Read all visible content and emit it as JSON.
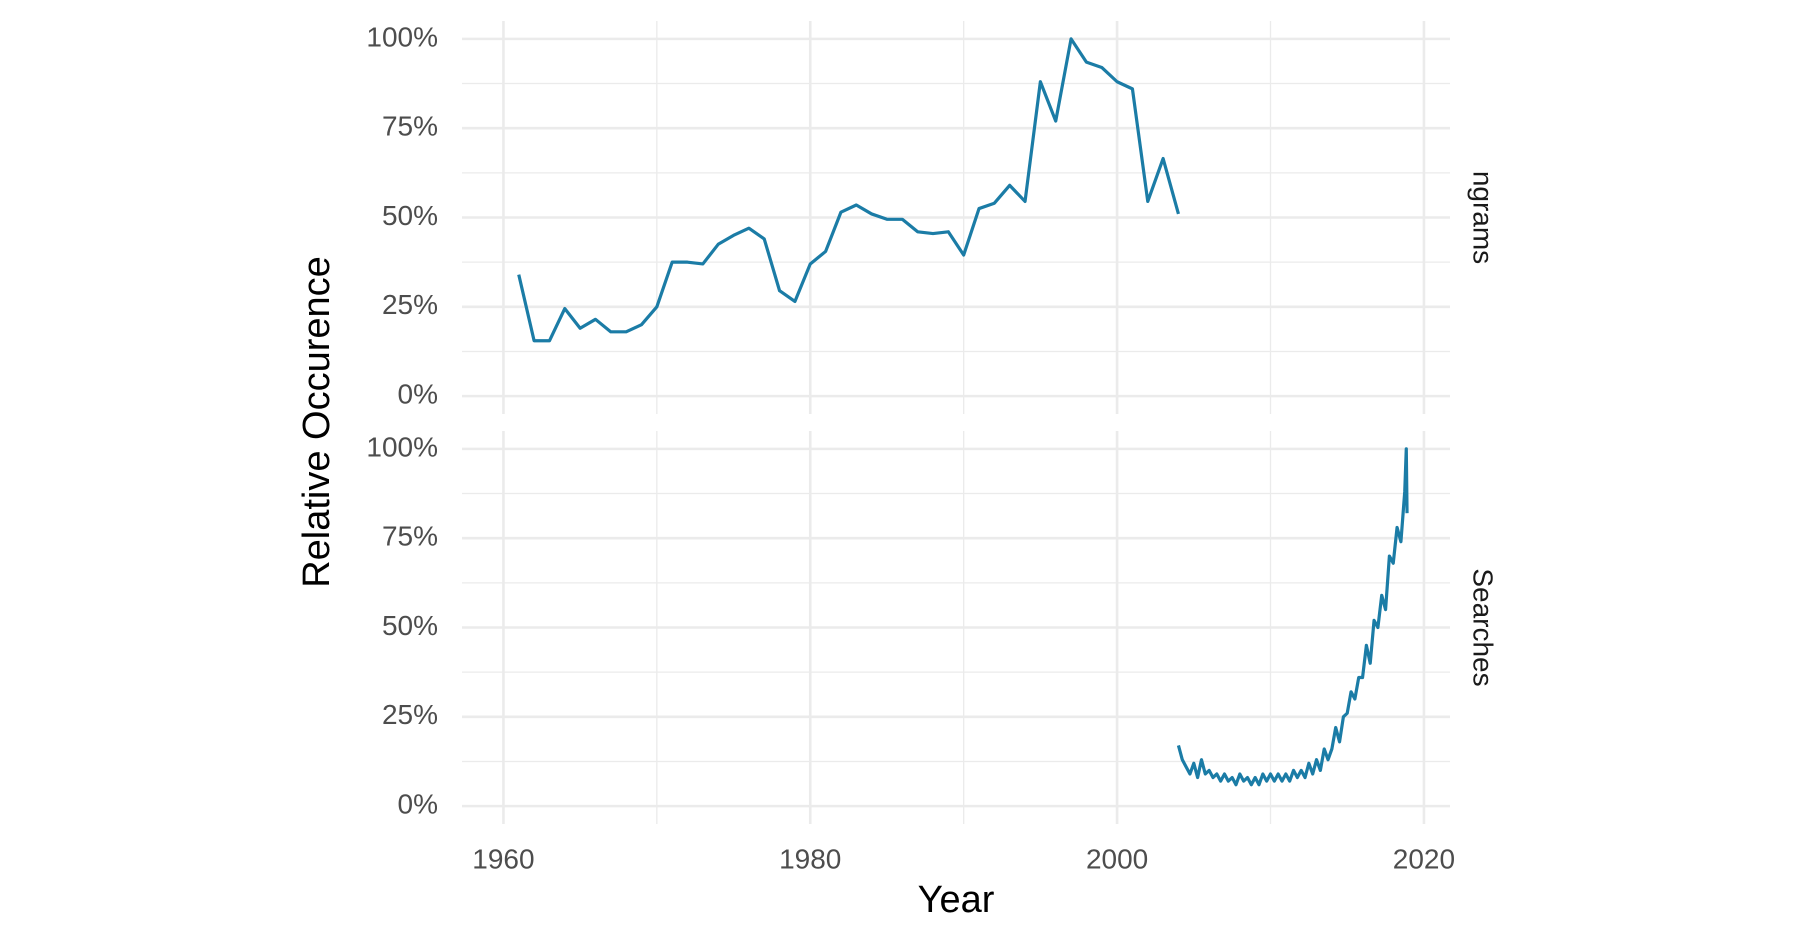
{
  "chart_data": [
    {
      "type": "line",
      "facet": "ngrams",
      "y_label": "Relative Occurence",
      "x": [
        1961,
        1962,
        1963,
        1964,
        1965,
        1966,
        1967,
        1968,
        1969,
        1970,
        1971,
        1972,
        1973,
        1974,
        1975,
        1976,
        1977,
        1978,
        1979,
        1980,
        1981,
        1982,
        1983,
        1984,
        1985,
        1986,
        1987,
        1988,
        1989,
        1990,
        1991,
        1992,
        1993,
        1994,
        1995,
        1996,
        1997,
        1998,
        1999,
        2000,
        2001,
        2002,
        2003,
        2004
      ],
      "series": [
        {
          "color": "#1b7ca6",
          "values": [
            34,
            15.5,
            15.5,
            24.5,
            19,
            21.5,
            18,
            18,
            20,
            25,
            37.5,
            37.5,
            37,
            42.5,
            45,
            47,
            44,
            29.5,
            26.5,
            37,
            40.5,
            51.5,
            53.5,
            51,
            49.5,
            49.5,
            46,
            45.5,
            46,
            39.5,
            52.5,
            54,
            59,
            54.5,
            88,
            77,
            100,
            93.5,
            92,
            88,
            86,
            54.5,
            66.5,
            51
          ]
        }
      ],
      "xlim": [
        1957.3,
        2021.7
      ],
      "xticks": [
        1960,
        1980,
        2000,
        2020
      ],
      "ylim": [
        -5,
        105
      ],
      "yticks": [
        {
          "value": 0,
          "label": "0%"
        },
        {
          "value": 25,
          "label": "25%"
        },
        {
          "value": 50,
          "label": "50%"
        },
        {
          "value": 75,
          "label": "75%"
        },
        {
          "value": 100,
          "label": "100%"
        }
      ],
      "grid": true
    },
    {
      "type": "line",
      "facet": "Searches",
      "x_label": "Year",
      "x": [
        2004,
        2004.25,
        2004.5,
        2004.75,
        2005,
        2005.25,
        2005.5,
        2005.75,
        2006,
        2006.25,
        2006.5,
        2006.75,
        2007,
        2007.25,
        2007.5,
        2007.75,
        2008,
        2008.25,
        2008.5,
        2008.75,
        2009,
        2009.25,
        2009.5,
        2009.75,
        2010,
        2010.25,
        2010.5,
        2010.75,
        2011,
        2011.25,
        2011.5,
        2011.75,
        2012,
        2012.25,
        2012.5,
        2012.75,
        2013,
        2013.25,
        2013.5,
        2013.75,
        2014,
        2014.25,
        2014.5,
        2014.75,
        2015,
        2015.25,
        2015.5,
        2015.75,
        2016,
        2016.25,
        2016.5,
        2016.75,
        2017,
        2017.25,
        2017.5,
        2017.75,
        2018,
        2018.25,
        2018.5,
        2018.75,
        2018.85,
        2018.9
      ],
      "series": [
        {
          "color": "#1b7ca6",
          "values": [
            17,
            13,
            11,
            9,
            12,
            8,
            13,
            9,
            10,
            8,
            9,
            7,
            9,
            7,
            8,
            6,
            9,
            7,
            8,
            6,
            8,
            6,
            9,
            7,
            9,
            7,
            9,
            7,
            9,
            7,
            10,
            8,
            10,
            8,
            12,
            9,
            13,
            10,
            16,
            13,
            16,
            22,
            18,
            25,
            26,
            32,
            30,
            36,
            36,
            45,
            40,
            52,
            50,
            59,
            55,
            70,
            68,
            78,
            74,
            88,
            100,
            82
          ]
        }
      ],
      "xlim": [
        1957.3,
        2021.7
      ],
      "xticks": [
        1960,
        1980,
        2000,
        2020
      ],
      "ylim": [
        -5,
        105
      ],
      "yticks": [
        {
          "value": 0,
          "label": "0%"
        },
        {
          "value": 25,
          "label": "25%"
        },
        {
          "value": 50,
          "label": "50%"
        },
        {
          "value": 75,
          "label": "75%"
        },
        {
          "value": 100,
          "label": "100%"
        }
      ],
      "grid": true
    }
  ]
}
